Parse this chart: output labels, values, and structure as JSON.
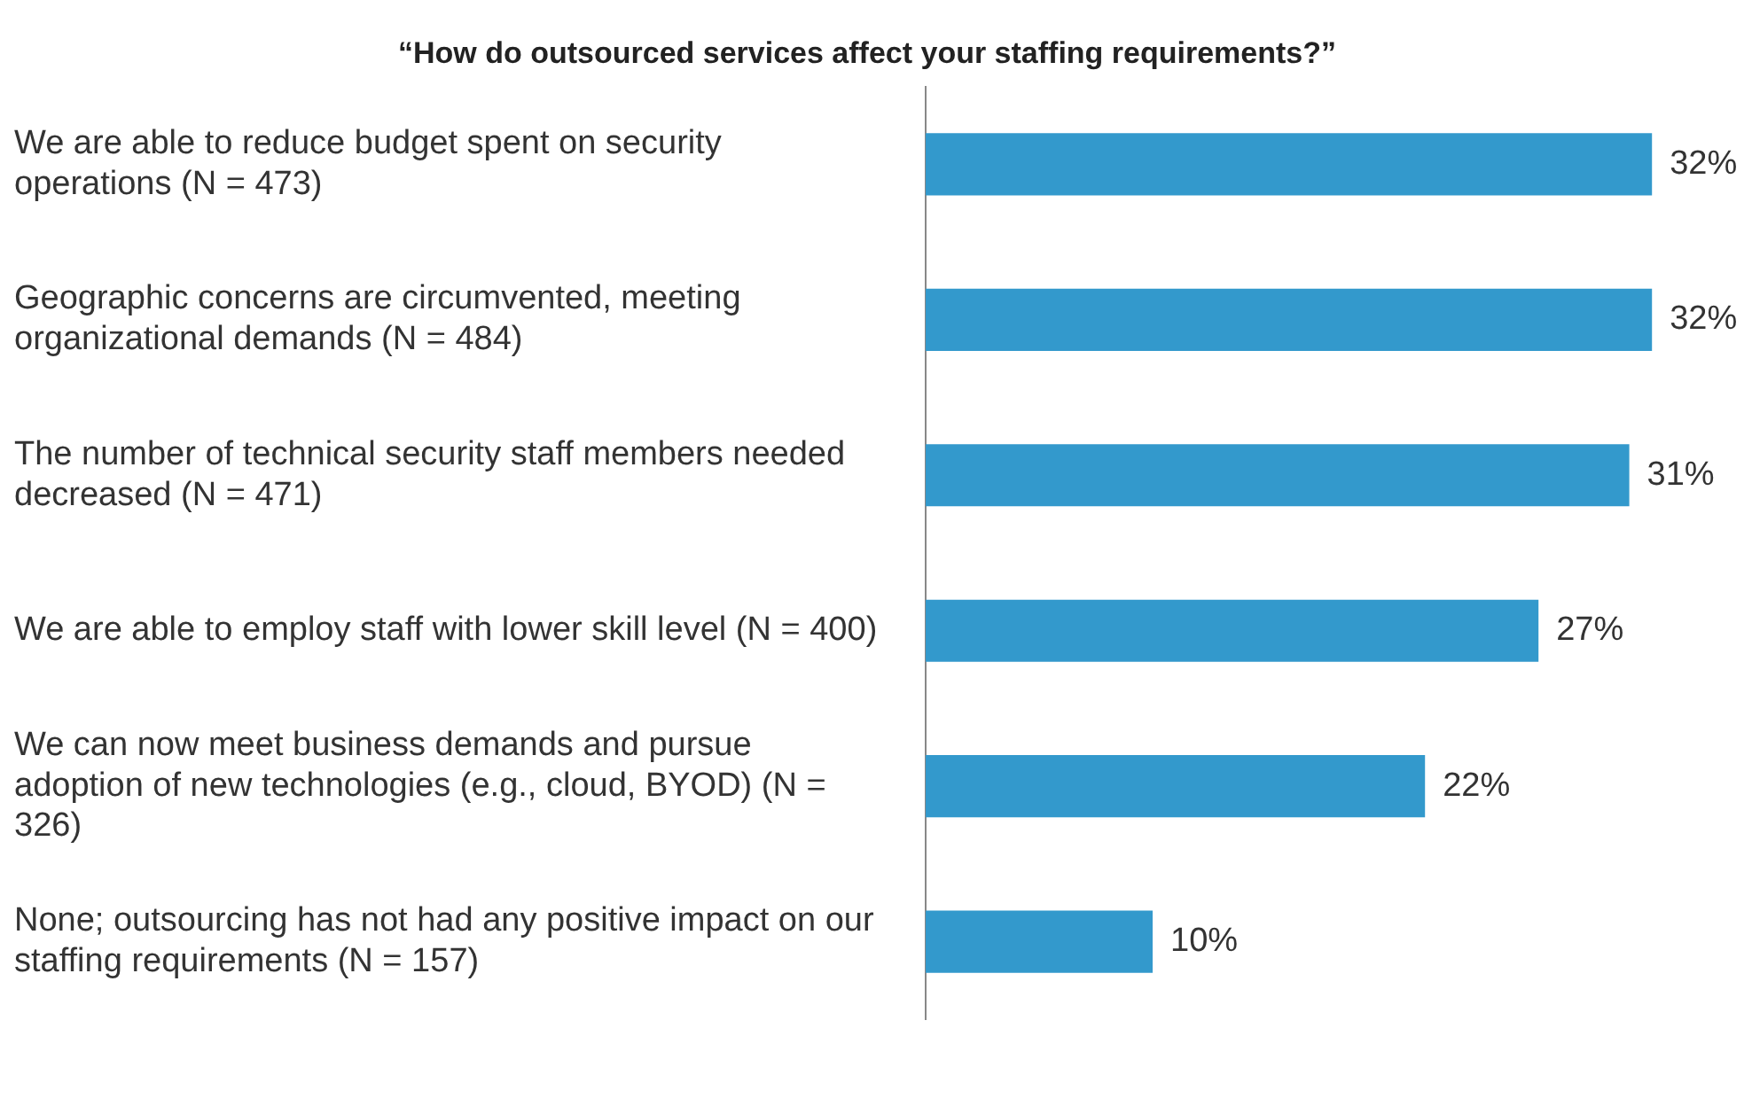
{
  "chart_data": {
    "type": "bar",
    "orientation": "horizontal",
    "title": "“How do outsourced services affect your staffing requirements?”",
    "categories": [
      "We are able to reduce budget spent on security operations (N = 473)",
      "Geographic concerns are circumvented, meeting organizational demands (N = 484)",
      "The number of technical security staff members needed decreased (N = 471)",
      "We are able to employ staff with lower skill level (N = 400)",
      "We can now meet business demands and pursue adoption of new technologies (e.g., cloud, BYOD) (N = 326)",
      "None; outsourcing has not had any positive impact on our staffing requirements (N = 157)"
    ],
    "values": [
      32,
      32,
      31,
      27,
      22,
      10
    ],
    "value_labels": [
      "32%",
      "32%",
      "31%",
      "27%",
      "22%",
      "10%"
    ],
    "color": "#3399cc",
    "grid": false,
    "legend": false,
    "tick_labels": "y"
  }
}
